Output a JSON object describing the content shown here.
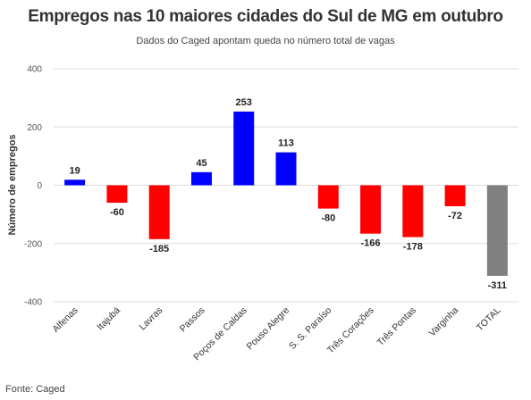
{
  "title": "Empregos nas 10 maiores cidades do Sul de MG em outubro",
  "subtitle": "Dados do Caged apontam queda no número total de vagas",
  "source": "Fonte: Caged",
  "chart_data": {
    "type": "bar",
    "title": "Empregos nas 10 maiores cidades do Sul de MG em outubro",
    "subtitle": "Dados do Caged apontam queda no número total de vagas",
    "xlabel": "",
    "ylabel": "Número de empregos",
    "ylim": [
      -400,
      400
    ],
    "yticks": [
      400,
      200,
      0,
      -200,
      -400
    ],
    "grid": true,
    "categories": [
      "Alfenas",
      "Itajubá",
      "Lavras",
      "Passos",
      "Poços de Caldas",
      "Pouso Alegre",
      "S. S. Paraíso",
      "Três Corações",
      "Três Pontas",
      "Varginha",
      "TOTAL"
    ],
    "values": [
      19,
      -60,
      -185,
      45,
      253,
      113,
      -80,
      -166,
      -178,
      -72,
      -311
    ],
    "colors": {
      "positive": "#0000ff",
      "negative": "#ff0000",
      "total": "#808080"
    }
  }
}
